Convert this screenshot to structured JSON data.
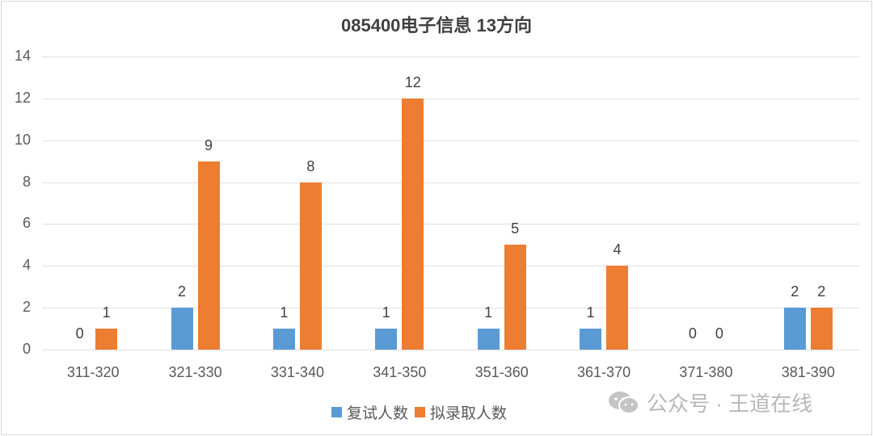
{
  "chart_data": {
    "type": "bar",
    "title": "085400电子信息 13方向",
    "categories": [
      "311-320",
      "321-330",
      "331-340",
      "341-350",
      "351-360",
      "361-370",
      "371-380",
      "381-390"
    ],
    "series": [
      {
        "name": "复试人数",
        "color": "#5b9bd5",
        "values": [
          0,
          2,
          1,
          1,
          1,
          1,
          0,
          2
        ]
      },
      {
        "name": "拟录取人数",
        "color": "#ed7d31",
        "values": [
          1,
          9,
          8,
          12,
          5,
          4,
          0,
          2
        ]
      }
    ],
    "xlabel": "",
    "ylabel": "",
    "ylim": [
      0,
      14
    ],
    "yticks": [
      0,
      2,
      4,
      6,
      8,
      10,
      12,
      14
    ],
    "grid": true,
    "legend_position": "bottom",
    "data_labels": true
  },
  "watermark": {
    "text": "公众号 · 王道在线",
    "icon": "wechat-icon"
  }
}
